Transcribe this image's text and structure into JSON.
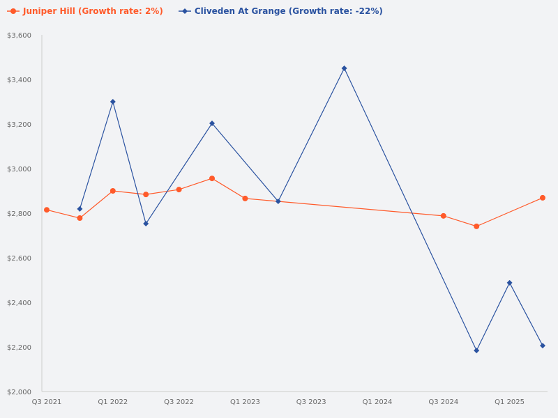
{
  "chart_data": {
    "type": "line",
    "title": "",
    "xlabel": "",
    "ylabel": "",
    "ylim": [
      2000,
      3600
    ],
    "yticks": [
      2000,
      2200,
      2400,
      2600,
      2800,
      3000,
      3200,
      3400,
      3600
    ],
    "ytick_labels": [
      "$2,000",
      "$2,200",
      "$2,400",
      "$2,600",
      "$2,800",
      "$3,000",
      "$3,200",
      "$3,400",
      "$3,600"
    ],
    "categories": [
      "Q3 2021",
      "Q4 2021",
      "Q1 2022",
      "Q2 2022",
      "Q3 2022",
      "Q4 2022",
      "Q1 2023",
      "Q2 2023",
      "Q3 2023",
      "Q4 2023",
      "Q1 2024",
      "Q2 2024",
      "Q3 2024",
      "Q4 2024",
      "Q1 2025",
      "Q2 2025"
    ],
    "xtick_labels": [
      "Q3 2021",
      "Q1 2022",
      "Q3 2022",
      "Q1 2023",
      "Q3 2023",
      "Q1 2024",
      "Q3 2024",
      "Q1 2025"
    ],
    "grid": false,
    "legend_position": "top-left",
    "series": [
      {
        "name": "Juniper Hill (Growth rate: 2%)",
        "color": "#ff5a2a",
        "marker": "circle",
        "values": [
          2815,
          2778,
          2900,
          2884,
          2906,
          2956,
          2866,
          null,
          null,
          null,
          null,
          null,
          2788,
          2741,
          null,
          2869
        ]
      },
      {
        "name": "Cliveden At Grange (Growth rate: -22%)",
        "color": "#2a52a0",
        "marker": "diamond",
        "values": [
          null,
          2819,
          3300,
          2753,
          null,
          3203,
          null,
          2853,
          null,
          3450,
          null,
          null,
          null,
          2184,
          2488,
          2206
        ]
      }
    ]
  }
}
